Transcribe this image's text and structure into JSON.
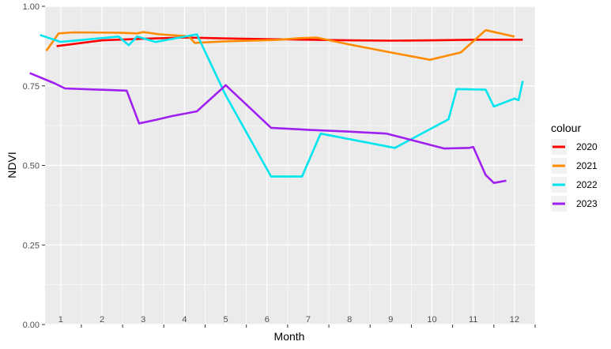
{
  "chart_data": {
    "type": "line",
    "xlabel": "Month",
    "ylabel": "NDVI",
    "xlim": [
      0.62,
      12.5
    ],
    "ylim": [
      0,
      1
    ],
    "month_labels": [
      "1",
      "2",
      "3",
      "4",
      "5",
      "6",
      "7",
      "8",
      "9",
      "10",
      "11",
      "12"
    ],
    "y_ticks": [
      {
        "value": 0,
        "label": "0.00"
      },
      {
        "value": 0.25,
        "label": "0.25"
      },
      {
        "value": 0.5,
        "label": "0.50"
      },
      {
        "value": 0.75,
        "label": "0.75"
      },
      {
        "value": 1,
        "label": "1.00"
      }
    ],
    "legend": {
      "title": "colour",
      "position": "right"
    },
    "colors": {
      "panel": "#ebebeb",
      "grid": "#ffffff"
    },
    "series": [
      {
        "name": "2020",
        "color": "#ff0000",
        "x": [
          0.9,
          2.0,
          3.0,
          4.0,
          5.0,
          6.0,
          7.0,
          8.0,
          9.0,
          10.0,
          11.0,
          12.2
        ],
        "y": [
          0.875,
          0.893,
          0.898,
          0.902,
          0.899,
          0.897,
          0.895,
          0.893,
          0.892,
          0.893,
          0.895,
          0.895
        ]
      },
      {
        "name": "2021",
        "color": "#ff8c00",
        "x": [
          0.65,
          0.95,
          1.3,
          2.4,
          2.85,
          3.0,
          3.4,
          4.1,
          4.25,
          5.0,
          5.9,
          6.3,
          6.8,
          7.2,
          8.0,
          9.0,
          9.95,
          10.7,
          11.3,
          12.0
        ],
        "y": [
          0.86,
          0.915,
          0.918,
          0.917,
          0.915,
          0.919,
          0.912,
          0.906,
          0.885,
          0.89,
          0.893,
          0.895,
          0.9,
          0.902,
          0.88,
          0.855,
          0.832,
          0.855,
          0.925,
          0.905
        ]
      },
      {
        "name": "2022",
        "color": "#00e5ee",
        "x": [
          0.5,
          1.0,
          2.4,
          2.65,
          2.85,
          3.3,
          4.3,
          5.0,
          6.1,
          6.85,
          7.3,
          9.1,
          10.4,
          10.6,
          11.3,
          11.5,
          12.0,
          12.1,
          12.2
        ],
        "y": [
          0.91,
          0.888,
          0.905,
          0.878,
          0.905,
          0.888,
          0.912,
          0.72,
          0.465,
          0.465,
          0.6,
          0.555,
          0.645,
          0.74,
          0.738,
          0.685,
          0.71,
          0.705,
          0.765
        ]
      },
      {
        "name": "2023",
        "color": "#a020f0",
        "x": [
          0.25,
          0.85,
          1.1,
          2.6,
          2.9,
          3.3,
          3.7,
          4.3,
          5.0,
          6.1,
          7.0,
          7.9,
          8.9,
          10.3,
          10.9,
          11.0,
          11.3,
          11.5,
          11.8
        ],
        "y": [
          0.79,
          0.758,
          0.742,
          0.735,
          0.632,
          0.643,
          0.655,
          0.67,
          0.752,
          0.618,
          0.612,
          0.607,
          0.6,
          0.553,
          0.555,
          0.558,
          0.47,
          0.445,
          0.452
        ]
      }
    ]
  }
}
